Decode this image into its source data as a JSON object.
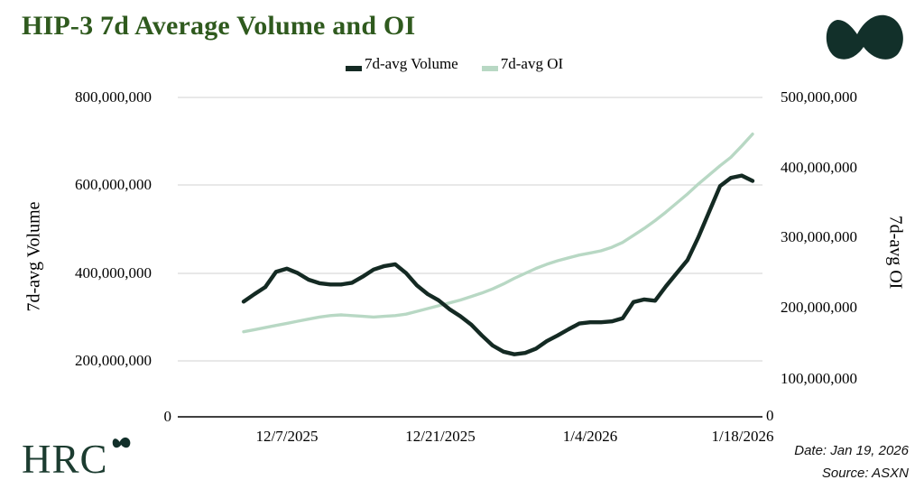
{
  "header": {
    "title": "HIP-3 7d Average Volume and OI"
  },
  "legend": [
    {
      "label": "7d-avg Volume",
      "color": "#142a23"
    },
    {
      "label": "7d-avg OI",
      "color": "#b8d8c4"
    }
  ],
  "left_axis": {
    "title": "7d-avg Volume",
    "ticks": [
      "800,000,000",
      "600,000,000",
      "400,000,000",
      "200,000,000",
      "0"
    ]
  },
  "right_axis": {
    "title": "7d-avg OI",
    "ticks": [
      "500,000,000",
      "400,000,000",
      "300,000,000",
      "200,000,000",
      "100,000,000",
      "0"
    ]
  },
  "x_axis": {
    "ticks": [
      "12/7/2025",
      "12/21/2025",
      "1/4/2026",
      "1/18/2026"
    ]
  },
  "footer": {
    "brand": "HRC",
    "date": "Date: Jan 19, 2026",
    "source": "Source: ASXN"
  },
  "chart_data": {
    "type": "line",
    "title": "HIP-3 7d Average Volume and OI",
    "grid": true,
    "legend_position": "top",
    "x": [
      "12/3/2025",
      "12/4/2025",
      "12/5/2025",
      "12/6/2025",
      "12/7/2025",
      "12/8/2025",
      "12/9/2025",
      "12/10/2025",
      "12/11/2025",
      "12/12/2025",
      "12/13/2025",
      "12/14/2025",
      "12/15/2025",
      "12/16/2025",
      "12/17/2025",
      "12/18/2025",
      "12/19/2025",
      "12/20/2025",
      "12/21/2025",
      "12/22/2025",
      "12/23/2025",
      "12/24/2025",
      "12/25/2025",
      "12/26/2025",
      "12/27/2025",
      "12/28/2025",
      "12/29/2025",
      "12/30/2025",
      "12/31/2025",
      "1/1/2026",
      "1/2/2026",
      "1/3/2026",
      "1/4/2026",
      "1/5/2026",
      "1/6/2026",
      "1/7/2026",
      "1/8/2026",
      "1/9/2026",
      "1/10/2026",
      "1/11/2026",
      "1/12/2026",
      "1/13/2026",
      "1/14/2026",
      "1/15/2026",
      "1/16/2026",
      "1/17/2026",
      "1/18/2026",
      "1/19/2026"
    ],
    "left_axis_tick_values": [
      0,
      200000000,
      400000000,
      600000000,
      800000000
    ],
    "right_axis_tick_values": [
      0,
      100000000,
      200000000,
      300000000,
      400000000,
      500000000
    ],
    "series": [
      {
        "name": "7d-avg Volume",
        "axis": "left",
        "color": "#142a23",
        "values": [
          335000000,
          352000000,
          368000000,
          403000000,
          410000000,
          400000000,
          385000000,
          377000000,
          374000000,
          374000000,
          378000000,
          392000000,
          408000000,
          416000000,
          420000000,
          400000000,
          372000000,
          352000000,
          338000000,
          318000000,
          302000000,
          283000000,
          258000000,
          235000000,
          221000000,
          215000000,
          218000000,
          228000000,
          245000000,
          258000000,
          272000000,
          285000000,
          288000000,
          288000000,
          290000000,
          297000000,
          334000000,
          340000000,
          337000000,
          370000000,
          400000000,
          430000000,
          482000000,
          540000000,
          598000000,
          617000000,
          622000000,
          610000000
        ]
      },
      {
        "name": "7d-avg OI",
        "axis": "right",
        "color": "#b8d8c4",
        "values": [
          167000000,
          170000000,
          173000000,
          176000000,
          179000000,
          182000000,
          185000000,
          188000000,
          190000000,
          191000000,
          190000000,
          189000000,
          188000000,
          189000000,
          190000000,
          192000000,
          196000000,
          200000000,
          204000000,
          208000000,
          212000000,
          217000000,
          222000000,
          228000000,
          235000000,
          243000000,
          250000000,
          257000000,
          263000000,
          268000000,
          272000000,
          276000000,
          279000000,
          282000000,
          287000000,
          294000000,
          304000000,
          314000000,
          325000000,
          337000000,
          350000000,
          363000000,
          377000000,
          390000000,
          403000000,
          415000000,
          431000000,
          448000000
        ]
      }
    ]
  }
}
